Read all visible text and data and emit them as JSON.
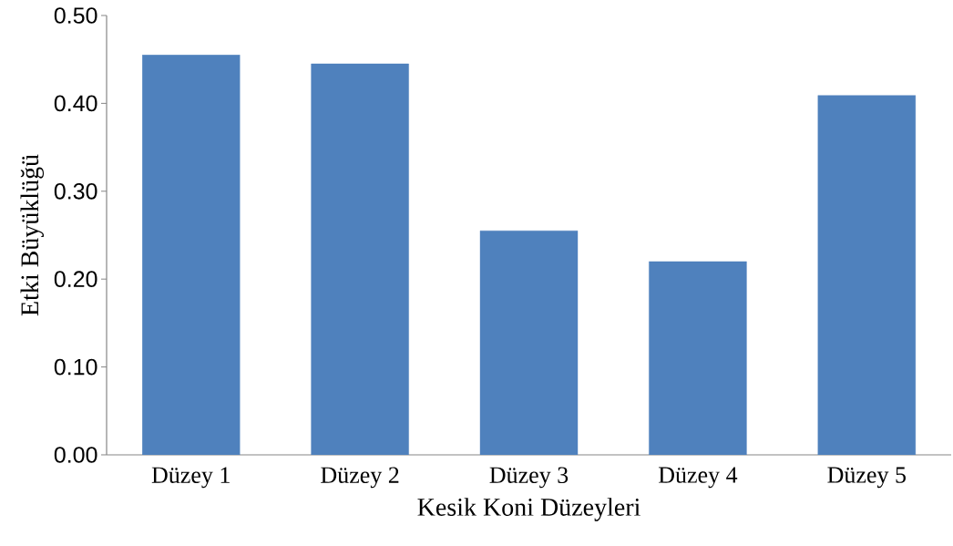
{
  "chart_data": {
    "type": "bar",
    "xlabel": "Kesik Koni Düzeyleri",
    "ylabel": "Etki Büyüklüğü",
    "categories": [
      "Düzey 1",
      "Düzey 2",
      "Düzey 3",
      "Düzey 4",
      "Düzey 5"
    ],
    "values": [
      0.455,
      0.445,
      0.255,
      0.22,
      0.409
    ],
    "color": "#4f81bd",
    "ylim": [
      0,
      0.5
    ],
    "yticks": [
      {
        "value": 0,
        "label": "0.00"
      },
      {
        "value": 0.1,
        "label": "0.10"
      },
      {
        "value": 0.2,
        "label": "0.20"
      },
      {
        "value": 0.3,
        "label": "0.30"
      },
      {
        "value": 0.4,
        "label": "0.40"
      },
      {
        "value": 0.5,
        "label": "0.50"
      }
    ],
    "grid": false
  }
}
